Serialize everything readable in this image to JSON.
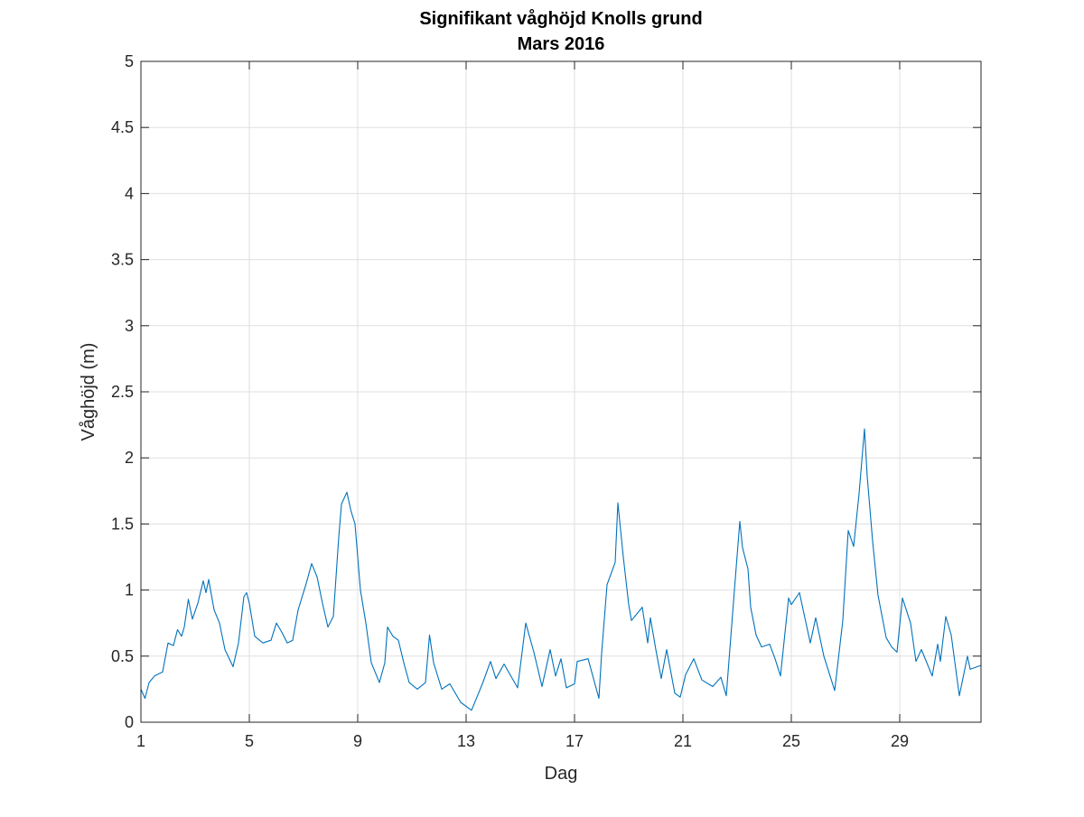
{
  "chart_data": {
    "type": "line",
    "title": "Signifikant våghöjd Knolls grund",
    "subtitle": "Mars 2016",
    "xlabel": "Dag",
    "ylabel": "Våghöjd (m)",
    "xlim": [
      1,
      32
    ],
    "ylim": [
      0,
      5
    ],
    "grid": true,
    "xticks": [
      1,
      5,
      9,
      13,
      17,
      21,
      25,
      29
    ],
    "xtick_labels": [
      "1",
      "5",
      "9",
      "13",
      "17",
      "21",
      "25",
      "29"
    ],
    "yticks": [
      0,
      0.5,
      1,
      1.5,
      2,
      2.5,
      3,
      3.5,
      4,
      4.5,
      5
    ],
    "ytick_labels": [
      "0",
      "0.5",
      "1",
      "1.5",
      "2",
      "2.5",
      "3",
      "3.5",
      "4",
      "4.5",
      "5"
    ],
    "series": [
      {
        "name": "Våghöjd",
        "color": "#0072BD",
        "x": [
          1.0,
          1.15,
          1.3,
          1.5,
          1.8,
          2.0,
          2.2,
          2.35,
          2.5,
          2.6,
          2.75,
          2.9,
          3.1,
          3.3,
          3.4,
          3.5,
          3.7,
          3.9,
          4.1,
          4.4,
          4.6,
          4.8,
          4.9,
          5.0,
          5.2,
          5.5,
          5.8,
          6.0,
          6.2,
          6.4,
          6.6,
          6.8,
          7.1,
          7.3,
          7.5,
          7.7,
          7.9,
          8.1,
          8.3,
          8.4,
          8.6,
          8.75,
          8.9,
          9.1,
          9.3,
          9.5,
          9.8,
          10.0,
          10.1,
          10.3,
          10.5,
          10.7,
          10.9,
          11.2,
          11.5,
          11.65,
          11.8,
          12.1,
          12.4,
          12.8,
          13.2,
          13.6,
          13.9,
          14.1,
          14.4,
          14.9,
          15.2,
          15.5,
          15.8,
          16.1,
          16.3,
          16.5,
          16.7,
          17.0,
          17.1,
          17.5,
          17.9,
          18.0,
          18.2,
          18.5,
          18.6,
          18.8,
          19.0,
          19.1,
          19.5,
          19.7,
          19.8,
          20.0,
          20.2,
          20.4,
          20.7,
          20.9,
          21.1,
          21.4,
          21.7,
          22.1,
          22.4,
          22.6,
          22.9,
          23.1,
          23.2,
          23.4,
          23.5,
          23.7,
          23.9,
          24.2,
          24.4,
          24.6,
          24.9,
          25.0,
          25.3,
          25.7,
          25.9,
          26.2,
          26.6,
          26.9,
          27.1,
          27.3,
          27.5,
          27.7,
          27.8,
          28.0,
          28.2,
          28.5,
          28.7,
          28.9,
          29.1,
          29.4,
          29.6,
          29.8,
          30.2,
          30.4,
          30.5,
          30.7,
          30.9,
          31.2,
          31.5,
          31.6,
          32.0
        ],
        "y": [
          0.25,
          0.18,
          0.3,
          0.35,
          0.38,
          0.6,
          0.58,
          0.7,
          0.65,
          0.72,
          0.93,
          0.78,
          0.9,
          1.07,
          0.98,
          1.08,
          0.85,
          0.75,
          0.55,
          0.42,
          0.6,
          0.95,
          0.98,
          0.9,
          0.65,
          0.6,
          0.62,
          0.75,
          0.68,
          0.6,
          0.62,
          0.85,
          1.05,
          1.2,
          1.1,
          0.9,
          0.72,
          0.8,
          1.4,
          1.65,
          1.74,
          1.6,
          1.5,
          1.0,
          0.75,
          0.45,
          0.3,
          0.45,
          0.72,
          0.65,
          0.62,
          0.45,
          0.3,
          0.25,
          0.3,
          0.66,
          0.45,
          0.25,
          0.29,
          0.15,
          0.09,
          0.29,
          0.46,
          0.33,
          0.44,
          0.26,
          0.75,
          0.53,
          0.27,
          0.55,
          0.35,
          0.48,
          0.26,
          0.29,
          0.46,
          0.48,
          0.18,
          0.52,
          1.04,
          1.21,
          1.66,
          1.25,
          0.89,
          0.77,
          0.87,
          0.6,
          0.79,
          0.55,
          0.33,
          0.55,
          0.22,
          0.19,
          0.36,
          0.48,
          0.32,
          0.27,
          0.34,
          0.2,
          1.0,
          1.52,
          1.32,
          1.16,
          0.87,
          0.66,
          0.57,
          0.59,
          0.48,
          0.35,
          0.94,
          0.89,
          0.98,
          0.6,
          0.79,
          0.5,
          0.24,
          0.77,
          1.45,
          1.33,
          1.73,
          2.22,
          1.86,
          1.37,
          0.96,
          0.64,
          0.57,
          0.53,
          0.94,
          0.75,
          0.46,
          0.55,
          0.35,
          0.59,
          0.46,
          0.8,
          0.66,
          0.2,
          0.5,
          0.4,
          0.43
        ]
      }
    ]
  }
}
